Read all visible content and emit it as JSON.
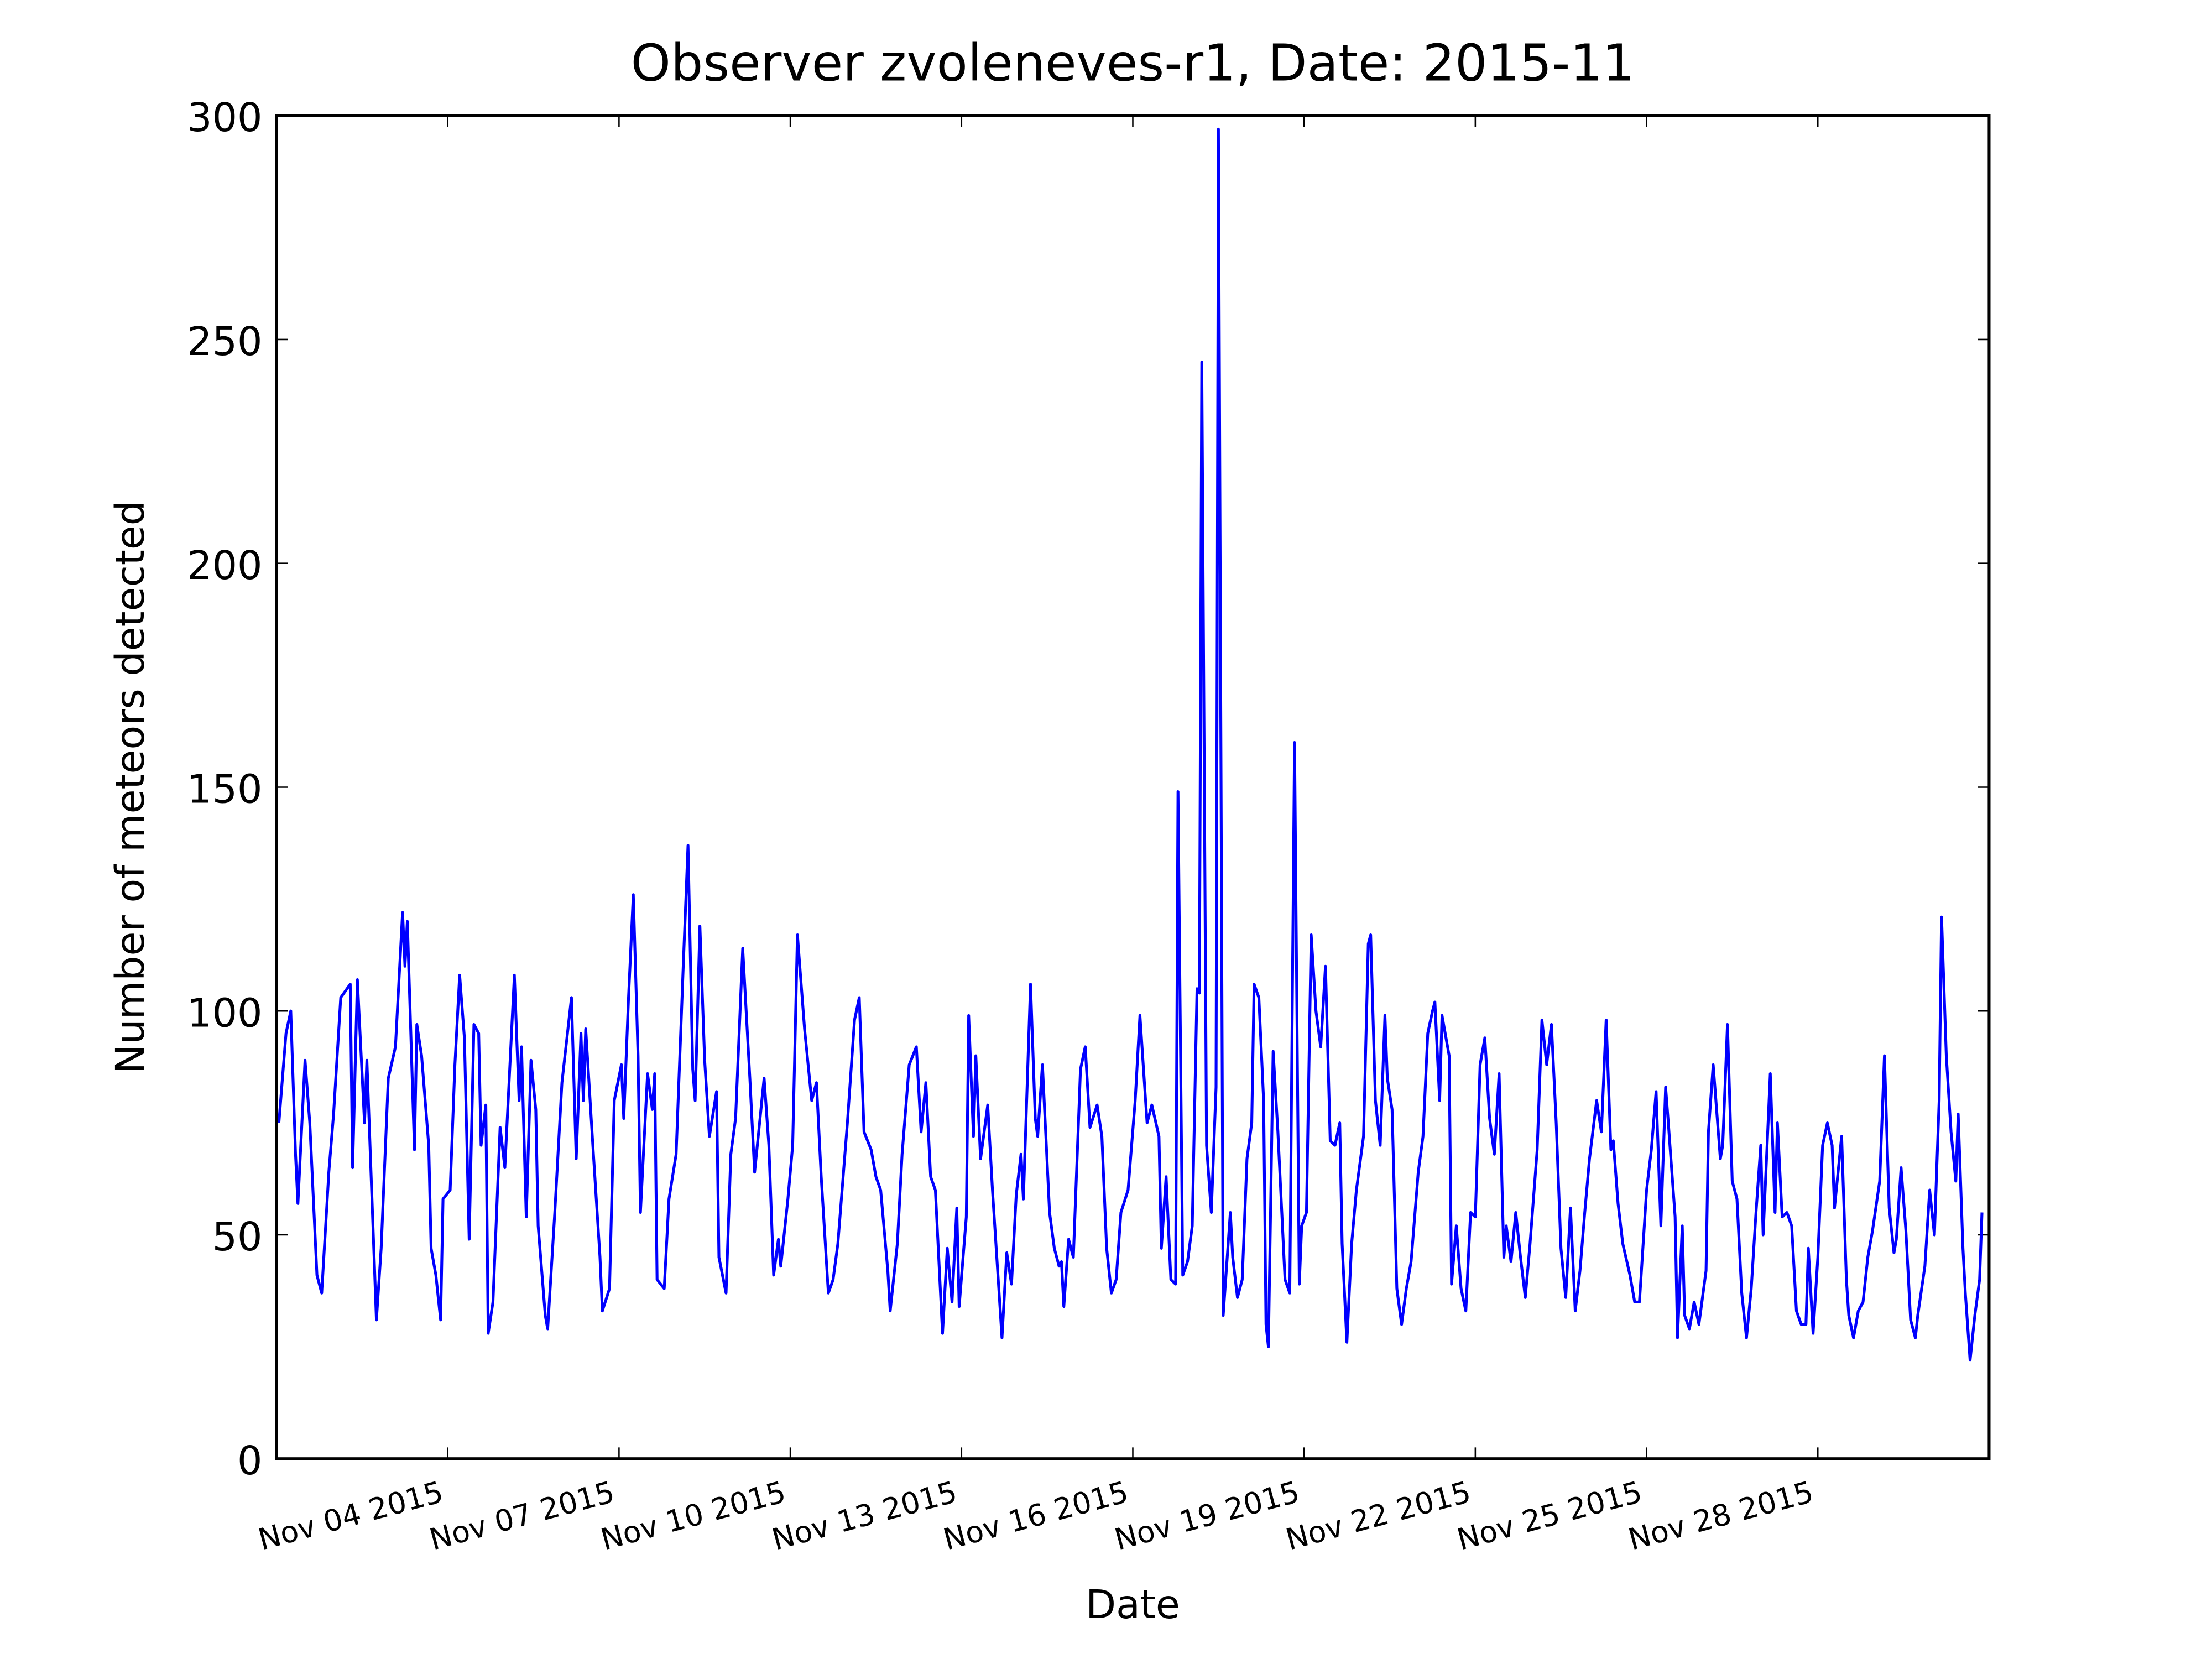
{
  "chart_data": {
    "type": "line",
    "title": "Observer zvoleneves-r1, Date: 2015-11",
    "x_label": "Date",
    "y_label": "Number of meteors detected",
    "color": "#0000ff",
    "grid": false,
    "xlim": [
      "2015-11-01 00:00",
      "2015-12-01 00:00"
    ],
    "xticks": [
      {
        "value": "2015-11-04",
        "label": "Nov 04 2015"
      },
      {
        "value": "2015-11-07",
        "label": "Nov 07 2015"
      },
      {
        "value": "2015-11-10",
        "label": "Nov 10 2015"
      },
      {
        "value": "2015-11-13",
        "label": "Nov 13 2015"
      },
      {
        "value": "2015-11-16",
        "label": "Nov 16 2015"
      },
      {
        "value": "2015-11-19",
        "label": "Nov 19 2015"
      },
      {
        "value": "2015-11-22",
        "label": "Nov 22 2015"
      },
      {
        "value": "2015-11-25",
        "label": "Nov 25 2015"
      },
      {
        "value": "2015-11-28",
        "label": "Nov 28 2015"
      }
    ],
    "ylim": [
      0,
      300
    ],
    "yticks": [
      0,
      50,
      100,
      150,
      200,
      250,
      300
    ],
    "x": [
      "2015-11-01 01:00",
      "2015-11-01 04:00",
      "2015-11-01 06:00",
      "2015-11-01 08:00",
      "2015-11-01 09:00",
      "2015-11-01 12:00",
      "2015-11-01 14:00",
      "2015-11-01 17:00",
      "2015-11-01 19:00",
      "2015-11-01 22:00",
      "2015-11-02 00:00",
      "2015-11-02 03:00",
      "2015-11-02 07:00",
      "2015-11-02 08:00",
      "2015-11-02 10:00",
      "2015-11-02 13:00",
      "2015-11-02 14:00",
      "2015-11-02 18:00",
      "2015-11-02 20:00",
      "2015-11-02 23:00",
      "2015-11-03 02:00",
      "2015-11-03 05:00",
      "2015-11-03 06:00",
      "2015-11-03 07:00",
      "2015-11-03 10:00",
      "2015-11-03 11:00",
      "2015-11-03 13:00",
      "2015-11-03 16:00",
      "2015-11-03 17:00",
      "2015-11-03 19:00",
      "2015-11-03 21:00",
      "2015-11-03 22:00",
      "2015-11-04 01:00",
      "2015-11-04 03:00",
      "2015-11-04 05:00",
      "2015-11-04 07:00",
      "2015-11-04 09:00",
      "2015-11-04 11:00",
      "2015-11-04 13:00",
      "2015-11-04 14:00",
      "2015-11-04 16:00",
      "2015-11-04 17:00",
      "2015-11-04 19:00",
      "2015-11-04 22:00",
      "2015-11-05 00:00",
      "2015-11-05 04:00",
      "2015-11-05 06:00",
      "2015-11-05 07:00",
      "2015-11-05 09:00",
      "2015-11-05 11:00",
      "2015-11-05 13:00",
      "2015-11-05 14:00",
      "2015-11-05 17:00",
      "2015-11-05 18:00",
      "2015-11-05 21:00",
      "2015-11-06 00:00",
      "2015-11-06 04:00",
      "2015-11-06 06:00",
      "2015-11-06 08:00",
      "2015-11-06 09:00",
      "2015-11-06 10:00",
      "2015-11-06 13:00",
      "2015-11-06 16:00",
      "2015-11-06 17:00",
      "2015-11-06 20:00",
      "2015-11-06 22:00",
      "2015-11-07 01:00",
      "2015-11-07 02:00",
      "2015-11-07 04:00",
      "2015-11-07 06:00",
      "2015-11-07 08:00",
      "2015-11-07 09:00",
      "2015-11-07 12:00",
      "2015-11-07 14:00",
      "2015-11-07 15:00",
      "2015-11-07 16:00",
      "2015-11-07 19:00",
      "2015-11-07 21:00",
      "2015-11-08 00:00",
      "2015-11-08 03:00",
      "2015-11-08 05:00",
      "2015-11-08 07:00",
      "2015-11-08 08:00",
      "2015-11-08 10:00",
      "2015-11-08 12:00",
      "2015-11-08 14:00",
      "2015-11-08 17:00",
      "2015-11-08 18:00",
      "2015-11-08 21:00",
      "2015-11-08 23:00",
      "2015-11-09 01:00",
      "2015-11-09 04:00",
      "2015-11-09 07:00",
      "2015-11-09 09:00",
      "2015-11-09 13:00",
      "2015-11-09 15:00",
      "2015-11-09 17:00",
      "2015-11-09 19:00",
      "2015-11-09 20:00",
      "2015-11-09 23:00",
      "2015-11-10 01:00",
      "2015-11-10 03:00",
      "2015-11-10 06:00",
      "2015-11-10 09:00",
      "2015-11-10 11:00",
      "2015-11-10 13:00",
      "2015-11-10 16:00",
      "2015-11-10 18:00",
      "2015-11-10 20:00",
      "2015-11-11 00:00",
      "2015-11-11 03:00",
      "2015-11-11 05:00",
      "2015-11-11 07:00",
      "2015-11-11 10:00",
      "2015-11-11 12:00",
      "2015-11-11 14:00",
      "2015-11-11 17:00",
      "2015-11-11 18:00",
      "2015-11-11 21:00",
      "2015-11-11 23:00",
      "2015-11-12 02:00",
      "2015-11-12 05:00",
      "2015-11-12 07:00",
      "2015-11-12 09:00",
      "2015-11-12 11:00",
      "2015-11-12 13:00",
      "2015-11-12 16:00",
      "2015-11-12 18:00",
      "2015-11-12 20:00",
      "2015-11-12 22:00",
      "2015-11-12 23:00",
      "2015-11-13 02:00",
      "2015-11-13 03:00",
      "2015-11-13 05:00",
      "2015-11-13 06:00",
      "2015-11-13 08:00",
      "2015-11-13 11:00",
      "2015-11-13 13:00",
      "2015-11-13 17:00",
      "2015-11-13 19:00",
      "2015-11-13 21:00",
      "2015-11-13 23:00",
      "2015-11-14 01:00",
      "2015-11-14 02:00",
      "2015-11-14 05:00",
      "2015-11-14 07:00",
      "2015-11-14 08:00",
      "2015-11-14 10:00",
      "2015-11-14 13:00",
      "2015-11-14 15:00",
      "2015-11-14 17:00",
      "2015-11-14 18:00",
      "2015-11-14 19:00",
      "2015-11-14 21:00",
      "2015-11-14 23:00",
      "2015-11-15 02:00",
      "2015-11-15 04:00",
      "2015-11-15 06:00",
      "2015-11-15 09:00",
      "2015-11-15 11:00",
      "2015-11-15 13:00",
      "2015-11-15 15:00",
      "2015-11-15 17:00",
      "2015-11-15 19:00",
      "2015-11-15 22:00",
      "2015-11-16 01:00",
      "2015-11-16 03:00",
      "2015-11-16 06:00",
      "2015-11-16 08:00",
      "2015-11-16 11:00",
      "2015-11-16 12:00",
      "2015-11-16 14:00",
      "2015-11-16 16:00",
      "2015-11-16 18:00",
      "2015-11-16 19:00",
      "2015-11-16 21:00",
      "2015-11-16 23:00",
      "2015-11-17 01:00",
      "2015-11-17 03:00",
      "2015-11-17 04:00",
      "2015-11-17 05:00",
      "2015-11-17 07:00",
      "2015-11-17 09:00",
      "2015-11-17 11:00",
      "2015-11-17 12:00",
      "2015-11-17 14:00",
      "2015-11-17 17:00",
      "2015-11-17 18:00",
      "2015-11-17 20:00",
      "2015-11-17 22:00",
      "2015-11-18 00:00",
      "2015-11-18 02:00",
      "2015-11-18 03:00",
      "2015-11-18 05:00",
      "2015-11-18 07:00",
      "2015-11-18 08:00",
      "2015-11-18 09:00",
      "2015-11-18 11:00",
      "2015-11-18 13:00",
      "2015-11-18 14:00",
      "2015-11-18 16:00",
      "2015-11-18 18:00",
      "2015-11-18 20:00",
      "2015-11-18 22:00",
      "2015-11-18 23:00",
      "2015-11-19 01:00",
      "2015-11-19 03:00",
      "2015-11-19 05:00",
      "2015-11-19 07:00",
      "2015-11-19 09:00",
      "2015-11-19 11:00",
      "2015-11-19 13:00",
      "2015-11-19 15:00",
      "2015-11-19 16:00",
      "2015-11-19 18:00",
      "2015-11-19 20:00",
      "2015-11-19 22:00",
      "2015-11-20 01:00",
      "2015-11-20 03:00",
      "2015-11-20 04:00",
      "2015-11-20 06:00",
      "2015-11-20 08:00",
      "2015-11-20 10:00",
      "2015-11-20 11:00",
      "2015-11-20 13:00",
      "2015-11-20 15:00",
      "2015-11-20 17:00",
      "2015-11-20 19:00",
      "2015-11-20 21:00",
      "2015-11-21 00:00",
      "2015-11-21 02:00",
      "2015-11-21 04:00",
      "2015-11-21 06:00",
      "2015-11-21 07:00",
      "2015-11-21 09:00",
      "2015-11-21 10:00",
      "2015-11-21 13:00",
      "2015-11-21 14:00",
      "2015-11-21 16:00",
      "2015-11-21 18:00",
      "2015-11-21 20:00",
      "2015-11-21 22:00",
      "2015-11-22 00:00",
      "2015-11-22 02:00",
      "2015-11-22 04:00",
      "2015-11-22 06:00",
      "2015-11-22 08:00",
      "2015-11-22 10:00",
      "2015-11-22 12:00",
      "2015-11-22 13:00",
      "2015-11-22 15:00",
      "2015-11-22 17:00",
      "2015-11-22 19:00",
      "2015-11-22 21:00",
      "2015-11-22 23:00",
      "2015-11-23 02:00",
      "2015-11-23 04:00",
      "2015-11-23 06:00",
      "2015-11-23 08:00",
      "2015-11-23 10:00",
      "2015-11-23 12:00",
      "2015-11-23 14:00",
      "2015-11-23 16:00",
      "2015-11-23 18:00",
      "2015-11-23 20:00",
      "2015-11-23 22:00",
      "2015-11-24 00:00",
      "2015-11-24 03:00",
      "2015-11-24 05:00",
      "2015-11-24 07:00",
      "2015-11-24 09:00",
      "2015-11-24 10:00",
      "2015-11-24 12:00",
      "2015-11-24 14:00",
      "2015-11-24 17:00",
      "2015-11-24 19:00",
      "2015-11-24 21:00",
      "2015-11-25 00:00",
      "2015-11-25 02:00",
      "2015-11-25 04:00",
      "2015-11-25 06:00",
      "2015-11-25 08:00",
      "2015-11-25 09:00",
      "2015-11-25 12:00",
      "2015-11-25 13:00",
      "2015-11-25 15:00",
      "2015-11-25 16:00",
      "2015-11-25 18:00",
      "2015-11-25 20:00",
      "2015-11-25 22:00",
      "2015-11-26 01:00",
      "2015-11-26 02:00",
      "2015-11-26 04:00",
      "2015-11-26 07:00",
      "2015-11-26 08:00",
      "2015-11-26 10:00",
      "2015-11-26 12:00",
      "2015-11-26 14:00",
      "2015-11-26 16:00",
      "2015-11-26 18:00",
      "2015-11-26 20:00",
      "2015-11-26 22:00",
      "2015-11-27 00:00",
      "2015-11-27 01:00",
      "2015-11-27 04:00",
      "2015-11-27 06:00",
      "2015-11-27 07:00",
      "2015-11-27 09:00",
      "2015-11-27 11:00",
      "2015-11-27 13:00",
      "2015-11-27 15:00",
      "2015-11-27 17:00",
      "2015-11-27 19:00",
      "2015-11-27 20:00",
      "2015-11-27 22:00",
      "2015-11-28 00:00",
      "2015-11-28 02:00",
      "2015-11-28 04:00",
      "2015-11-28 06:00",
      "2015-11-28 07:00",
      "2015-11-28 10:00",
      "2015-11-28 12:00",
      "2015-11-28 13:00",
      "2015-11-28 15:00",
      "2015-11-28 17:00",
      "2015-11-28 19:00",
      "2015-11-28 21:00",
      "2015-11-28 23:00",
      "2015-11-29 02:00",
      "2015-11-29 04:00",
      "2015-11-29 06:00",
      "2015-11-29 08:00",
      "2015-11-29 09:00",
      "2015-11-29 11:00",
      "2015-11-29 13:00",
      "2015-11-29 15:00",
      "2015-11-29 17:00",
      "2015-11-29 18:00",
      "2015-11-29 21:00",
      "2015-11-29 23:00",
      "2015-11-30 01:00",
      "2015-11-30 03:00",
      "2015-11-30 04:00",
      "2015-11-30 06:00",
      "2015-11-30 08:00",
      "2015-11-30 10:00",
      "2015-11-30 11:00",
      "2015-11-30 13:00",
      "2015-11-30 14:00",
      "2015-11-30 16:00",
      "2015-11-30 18:00",
      "2015-11-30 20:00",
      "2015-11-30 21:00"
    ],
    "values": [
      75,
      95,
      100,
      68,
      57,
      89,
      75,
      41,
      37,
      64,
      77,
      103,
      106,
      65,
      107,
      75,
      89,
      31,
      47,
      85,
      92,
      122,
      110,
      120,
      69,
      97,
      90,
      70,
      47,
      41,
      31,
      58,
      60,
      88,
      108,
      94,
      49,
      97,
      95,
      70,
      79,
      28,
      35,
      74,
      65,
      108,
      80,
      92,
      54,
      89,
      78,
      52,
      32,
      29,
      55,
      84,
      103,
      67,
      95,
      80,
      96,
      70,
      45,
      33,
      38,
      80,
      88,
      76,
      103,
      126,
      90,
      55,
      86,
      78,
      86,
      40,
      38,
      58,
      68,
      110,
      137,
      87,
      80,
      119,
      89,
      72,
      82,
      45,
      37,
      68,
      76,
      114,
      85,
      64,
      85,
      70,
      41,
      49,
      43,
      58,
      70,
      117,
      96,
      80,
      84,
      63,
      37,
      40,
      48,
      75,
      98,
      103,
      73,
      69,
      63,
      60,
      42,
      33,
      48,
      68,
      88,
      92,
      73,
      84,
      63,
      60,
      28,
      47,
      35,
      56,
      34,
      54,
      99,
      72,
      90,
      67,
      79,
      60,
      27,
      46,
      39,
      59,
      68,
      58,
      106,
      76,
      72,
      88,
      55,
      47,
      43,
      44,
      34,
      49,
      45,
      87,
      92,
      74,
      79,
      72,
      47,
      37,
      40,
      55,
      60,
      80,
      99,
      75,
      79,
      72,
      47,
      63,
      40,
      39,
      149,
      41,
      44,
      52,
      105,
      104,
      245,
      70,
      55,
      83,
      297,
      32,
      55,
      45,
      36,
      40,
      67,
      75,
      106,
      103,
      80,
      30,
      25,
      91,
      73,
      62,
      40,
      37,
      160,
      39,
      52,
      55,
      117,
      100,
      92,
      110,
      71,
      70,
      75,
      48,
      26,
      48,
      60,
      72,
      115,
      117,
      80,
      70,
      99,
      85,
      78,
      38,
      30,
      38,
      44,
      64,
      72,
      95,
      100,
      102,
      80,
      99,
      90,
      39,
      52,
      38,
      33,
      55,
      54,
      88,
      94,
      76,
      68,
      86,
      45,
      52,
      44,
      55,
      45,
      36,
      48,
      69,
      98,
      88,
      97,
      75,
      47,
      36,
      56,
      33,
      42,
      55,
      67,
      80,
      73,
      98,
      69,
      71,
      57,
      48,
      41,
      35,
      35,
      60,
      69,
      82,
      52,
      83,
      76,
      54,
      27,
      52,
      32,
      29,
      35,
      30,
      42,
      73,
      88,
      67,
      70,
      97,
      62,
      58,
      37,
      27,
      38,
      55,
      70,
      50,
      86,
      55,
      75,
      54,
      55,
      52,
      33,
      30,
      30,
      47,
      28,
      45,
      70,
      75,
      70,
      56,
      72,
      40,
      32,
      27,
      33,
      35,
      45,
      51,
      62,
      90,
      56,
      46,
      49,
      65,
      51,
      31,
      27,
      32,
      43,
      60,
      50,
      80,
      121,
      90,
      73,
      62,
      77,
      47,
      37,
      22,
      32,
      40,
      55
    ]
  }
}
